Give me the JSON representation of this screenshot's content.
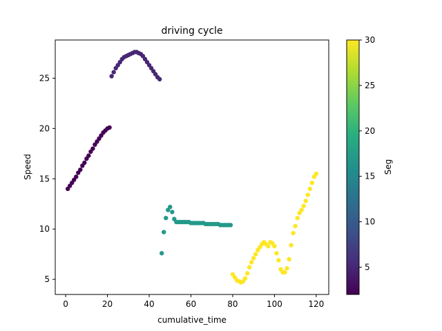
{
  "chart_data": {
    "type": "scatter",
    "title": "driving cycle",
    "xlabel": "cumulative_time",
    "ylabel": "Speed",
    "xlim": [
      -5,
      126
    ],
    "ylim": [
      3.5,
      28.8
    ],
    "xticks": [
      0,
      20,
      40,
      60,
      80,
      100,
      120
    ],
    "yticks": [
      5,
      10,
      15,
      20,
      25
    ],
    "grid": false,
    "colorbar": {
      "label": "Seg",
      "range": [
        2,
        30
      ],
      "ticks": [
        5,
        10,
        15,
        20,
        25,
        30
      ],
      "colormap": "viridis"
    },
    "segments": [
      {
        "seg": 2,
        "points": [
          [
            1,
            14.0
          ],
          [
            2,
            14.3
          ],
          [
            3,
            14.6
          ],
          [
            4,
            14.9
          ],
          [
            5,
            15.2
          ],
          [
            6,
            15.6
          ],
          [
            7,
            15.9
          ],
          [
            8,
            16.3
          ],
          [
            9,
            16.6
          ],
          [
            10,
            17.0
          ],
          [
            11,
            17.3
          ],
          [
            12,
            17.7
          ],
          [
            13,
            18.0
          ],
          [
            14,
            18.4
          ],
          [
            15,
            18.7
          ],
          [
            16,
            19.0
          ],
          [
            17,
            19.3
          ],
          [
            18,
            19.6
          ],
          [
            19,
            19.8
          ],
          [
            20,
            20.0
          ],
          [
            21,
            20.1
          ]
        ]
      },
      {
        "seg": 5,
        "points": [
          [
            22,
            25.2
          ],
          [
            23,
            25.6
          ],
          [
            24,
            26.0
          ],
          [
            25,
            26.3
          ],
          [
            26,
            26.6
          ],
          [
            27,
            26.9
          ],
          [
            28,
            27.1
          ],
          [
            29,
            27.2
          ],
          [
            30,
            27.3
          ],
          [
            31,
            27.4
          ],
          [
            32,
            27.5
          ],
          [
            33,
            27.6
          ],
          [
            34,
            27.6
          ],
          [
            35,
            27.5
          ],
          [
            36,
            27.4
          ],
          [
            37,
            27.2
          ],
          [
            38,
            26.9
          ],
          [
            39,
            26.6
          ],
          [
            40,
            26.3
          ],
          [
            41,
            26.0
          ],
          [
            42,
            25.7
          ],
          [
            43,
            25.4
          ],
          [
            44,
            25.1
          ],
          [
            45,
            24.9
          ]
        ]
      },
      {
        "seg": 17,
        "points": [
          [
            46,
            7.6
          ],
          [
            47,
            9.7
          ],
          [
            48,
            11.1
          ],
          [
            49,
            11.9
          ],
          [
            50,
            12.2
          ],
          [
            51,
            11.7
          ],
          [
            52,
            11.0
          ],
          [
            53,
            10.7
          ],
          [
            54,
            10.7
          ],
          [
            55,
            10.7
          ],
          [
            56,
            10.7
          ],
          [
            57,
            10.7
          ],
          [
            58,
            10.7
          ],
          [
            59,
            10.7
          ],
          [
            60,
            10.6
          ],
          [
            61,
            10.6
          ],
          [
            62,
            10.6
          ],
          [
            63,
            10.6
          ],
          [
            64,
            10.6
          ],
          [
            65,
            10.6
          ],
          [
            66,
            10.6
          ],
          [
            67,
            10.5
          ],
          [
            68,
            10.5
          ],
          [
            69,
            10.5
          ],
          [
            70,
            10.5
          ],
          [
            71,
            10.5
          ],
          [
            72,
            10.5
          ],
          [
            73,
            10.5
          ],
          [
            74,
            10.4
          ],
          [
            75,
            10.4
          ],
          [
            76,
            10.4
          ],
          [
            77,
            10.4
          ],
          [
            78,
            10.4
          ],
          [
            79,
            10.4
          ]
        ]
      },
      {
        "seg": 30,
        "points": [
          [
            80,
            5.5
          ],
          [
            81,
            5.2
          ],
          [
            82,
            4.9
          ],
          [
            83,
            4.8
          ],
          [
            84,
            4.7
          ],
          [
            85,
            4.8
          ],
          [
            86,
            5.1
          ],
          [
            87,
            5.6
          ],
          [
            88,
            6.2
          ],
          [
            89,
            6.7
          ],
          [
            90,
            7.1
          ],
          [
            91,
            7.5
          ],
          [
            92,
            7.9
          ],
          [
            93,
            8.2
          ],
          [
            94,
            8.5
          ],
          [
            95,
            8.7
          ],
          [
            96,
            8.5
          ],
          [
            97,
            8.3
          ],
          [
            98,
            8.7
          ],
          [
            99,
            8.6
          ],
          [
            100,
            8.3
          ],
          [
            101,
            7.6
          ],
          [
            102,
            6.9
          ],
          [
            103,
            6.0
          ],
          [
            104,
            5.7
          ],
          [
            105,
            5.7
          ],
          [
            106,
            6.1
          ],
          [
            107,
            7.0
          ],
          [
            108,
            8.4
          ],
          [
            109,
            9.6
          ],
          [
            110,
            10.3
          ],
          [
            111,
            11.1
          ],
          [
            112,
            11.6
          ],
          [
            113,
            11.9
          ],
          [
            114,
            12.3
          ],
          [
            115,
            12.8
          ],
          [
            116,
            13.4
          ],
          [
            117,
            14.0
          ],
          [
            118,
            14.6
          ],
          [
            119,
            15.2
          ],
          [
            120,
            15.5
          ]
        ]
      }
    ]
  }
}
